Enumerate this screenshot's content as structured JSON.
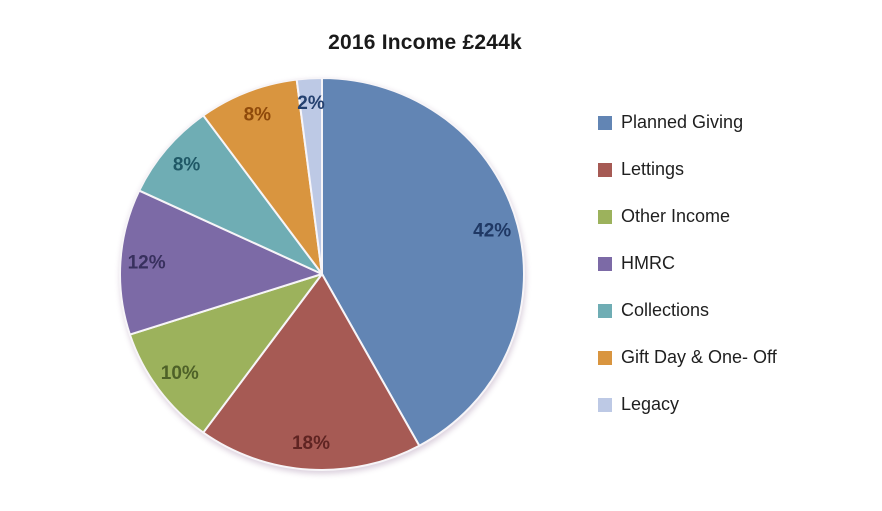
{
  "page": {
    "background_color": "#ffffff"
  },
  "chart_data": {
    "type": "pie",
    "title": "2016 Income £244k",
    "legend_position": "right",
    "start_angle_deg": 0,
    "direction": "clockwise",
    "total_percent": 100,
    "slices": [
      {
        "label": "Planned Giving",
        "value": 42,
        "percent_label": "42%",
        "color": "#6285B4",
        "label_color": "#1F3864"
      },
      {
        "label": "Lettings",
        "value": 18,
        "percent_label": "18%",
        "color": "#A65A54",
        "label_color": "#5F2422"
      },
      {
        "label": "Other Income",
        "value": 10,
        "percent_label": "10%",
        "color": "#9CB25C",
        "label_color": "#4E6128"
      },
      {
        "label": "HMRC",
        "value": 12,
        "percent_label": "12%",
        "color": "#7C6AA6",
        "label_color": "#38305E"
      },
      {
        "label": "Collections",
        "value": 8,
        "percent_label": "8%",
        "color": "#6FADB4",
        "label_color": "#1F5866"
      },
      {
        "label": "Gift Day & One- Off",
        "value": 8,
        "percent_label": "8%",
        "color": "#D9953F",
        "label_color": "#8F4A0B"
      },
      {
        "label": "Legacy",
        "value": 2,
        "percent_label": "2%",
        "color": "#BDC9E5",
        "label_color": "#24406F"
      }
    ]
  }
}
